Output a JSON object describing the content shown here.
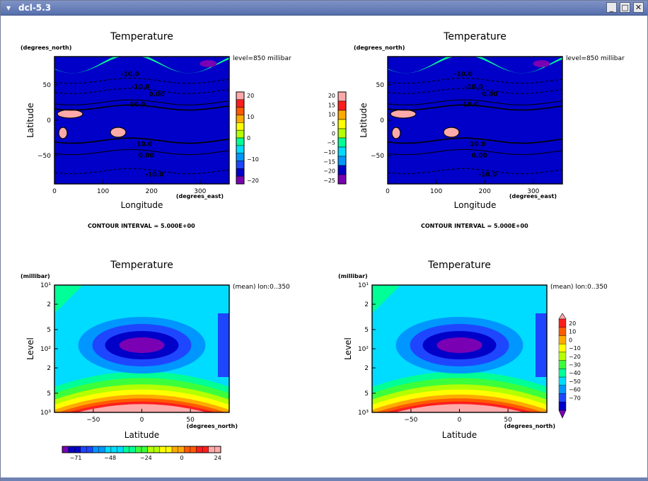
{
  "window": {
    "title": "dcl-5.3",
    "buttons": {
      "minimize": "_",
      "maximize": "□",
      "close": "✕"
    }
  },
  "colors": {
    "band_1": "#7a00b4",
    "band_2": "#0000c8",
    "band_3": "#1e46ff",
    "band_4": "#0096ff",
    "band_5": "#00dcff",
    "band_6": "#00ff96",
    "band_7": "#3cff3c",
    "band_8": "#b4ff00",
    "band_9": "#ffff00",
    "band_10": "#ffaa00",
    "band_11": "#ff5a00",
    "band_12": "#ff1e1e",
    "band_13": "#ffaaaa"
  },
  "chart_data": [
    {
      "type": "heatmap",
      "title": "Temperature",
      "xlabel": "Longitude",
      "xunit": "(degrees_east)",
      "ylabel": "Latitude",
      "yunit": "(degrees_north)",
      "xlim": [
        0,
        360
      ],
      "ylim": [
        -90,
        90
      ],
      "xticks": [
        "0",
        "100",
        "200",
        "300"
      ],
      "yticks": [
        "50",
        "0",
        "−50"
      ],
      "annotation": "level=850 millibar",
      "footer": "CONTOUR INTERVAL = 5.000E+00",
      "contour_labels": [
        "-10.0",
        "-10.0",
        "0.00",
        "10.0",
        "10.0",
        "0.00",
        "-10.0"
      ],
      "colorbar": {
        "orientation": "vertical-right",
        "ticks": [
          "20",
          "10",
          "0",
          "−10",
          "−20"
        ]
      }
    },
    {
      "type": "heatmap",
      "title": "Temperature",
      "xlabel": "Longitude",
      "xunit": "(degrees_east)",
      "ylabel": "Latitude",
      "yunit": "(degrees_north)",
      "xlim": [
        0,
        360
      ],
      "ylim": [
        -90,
        90
      ],
      "xticks": [
        "0",
        "100",
        "200",
        "300"
      ],
      "yticks": [
        "50",
        "0",
        "−50"
      ],
      "annotation": "level=850 millibar",
      "footer": "CONTOUR INTERVAL = 5.000E+00",
      "contour_labels": [
        "-10.0",
        "-10.0",
        "0.00",
        "10.0",
        "10.0",
        "0.00",
        "-10.0"
      ],
      "colorbar": {
        "orientation": "vertical-left",
        "ticks": [
          "20",
          "15",
          "10",
          "5",
          "0",
          "−5",
          "−10",
          "−15",
          "−20",
          "−25"
        ]
      }
    },
    {
      "type": "heatmap",
      "title": "Temperature",
      "xlabel": "Latitude",
      "xunit": "(degrees_north)",
      "ylabel": "Level",
      "yunit": "(millibar)",
      "xlim": [
        -90,
        90
      ],
      "ylim": [
        1000,
        10
      ],
      "xticks": [
        "−50",
        "0",
        "50"
      ],
      "yticks": [
        "10¹",
        "2",
        "5",
        "10²",
        "2",
        "5",
        "10³"
      ],
      "annotation": "(mean) lon:0..350",
      "colorbar": {
        "orientation": "horizontal",
        "ticks": [
          "−71",
          "−48",
          "−24",
          "0",
          "24"
        ]
      }
    },
    {
      "type": "heatmap",
      "title": "Temperature",
      "xlabel": "Latitude",
      "xunit": "(degrees_north)",
      "ylabel": "Level",
      "yunit": "(millibar)",
      "xlim": [
        -90,
        90
      ],
      "ylim": [
        1000,
        10
      ],
      "xticks": [
        "−50",
        "0",
        "50"
      ],
      "yticks": [
        "10¹",
        "2",
        "5",
        "10²",
        "2",
        "5",
        "10³"
      ],
      "annotation": "(mean) lon:0..350",
      "colorbar": {
        "orientation": "vertical-right",
        "ticks": [
          "20",
          "10",
          "0",
          "−10",
          "−20",
          "−30",
          "−40",
          "−50",
          "−60",
          "−70"
        ]
      }
    }
  ]
}
